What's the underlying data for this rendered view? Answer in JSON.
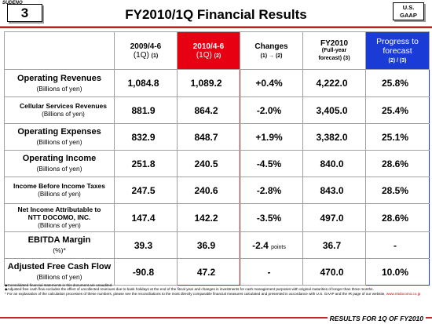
{
  "header": {
    "slide_no_label": "SUDENO",
    "slide_number": "3",
    "title": "FY2010/1Q Financial Results",
    "gaap_line1": "U.S.",
    "gaap_line2": "GAAP"
  },
  "columns": [
    {
      "main": "2009/4-6",
      "q": "(1Q)",
      "sub": "(1)"
    },
    {
      "main": "2010/4-6",
      "q": "(1Q)",
      "sub": "(2)"
    },
    {
      "main": "Changes",
      "q": "",
      "sub": "(1) → (2)"
    },
    {
      "main": "FY2010",
      "q": "(Full-year",
      "sub": "forecast) (3)"
    },
    {
      "main": "Progress to forecast",
      "q": "",
      "sub": "(2) / (3)"
    }
  ],
  "rows": [
    {
      "label": "Operating Revenues",
      "unit": "(Billions of yen)",
      "v1": "1,084.8",
      "v2": "1,089.2",
      "chg": "+0.4%",
      "chg_unit": "",
      "fc": "4,222.0",
      "prog": "25.8%"
    },
    {
      "label": "Cellular Services Revenues",
      "unit": "(Billions of yen)",
      "v1": "881.9",
      "v2": "864.2",
      "chg": "-2.0%",
      "chg_unit": "",
      "fc": "3,405.0",
      "prog": "25.4%"
    },
    {
      "label": "Operating Expenses",
      "unit": "(Billions of yen)",
      "v1": "832.9",
      "v2": "848.7",
      "chg": "+1.9%",
      "chg_unit": "",
      "fc": "3,382.0",
      "prog": "25.1%"
    },
    {
      "label": "Operating Income",
      "unit": "(Billions of yen)",
      "v1": "251.8",
      "v2": "240.5",
      "chg": "-4.5%",
      "chg_unit": "",
      "fc": "840.0",
      "prog": "28.6%"
    },
    {
      "label": "Income Before Income Taxes",
      "unit": "(Billions of yen)",
      "v1": "247.5",
      "v2": "240.6",
      "chg": "-2.8%",
      "chg_unit": "",
      "fc": "843.0",
      "prog": "28.5%"
    },
    {
      "label": "Net Income Attributable to NTT DOCOMO, INC.",
      "unit": "(Billions of yen)",
      "v1": "147.4",
      "v2": "142.2",
      "chg": "-3.5%",
      "chg_unit": "",
      "fc": "497.0",
      "prog": "28.6%"
    },
    {
      "label": "EBITDA Margin",
      "unit": "(%)*",
      "v1": "39.3",
      "v2": "36.9",
      "chg": "-2.4",
      "chg_unit": "points",
      "fc": "36.7",
      "prog": "-"
    },
    {
      "label": "Adjusted Free Cash Flow",
      "unit": "(Billions of yen)",
      "v1": "-90.8",
      "v2": "47.2",
      "chg": "-",
      "chg_unit": "",
      "fc": "470.0",
      "prog": "10.0%"
    }
  ],
  "footnotes": {
    "line1": "◆Consolidated financial statements in this document are unaudited.",
    "line2": "◆Adjusted free cash flow excludes the effect of uncollected revenues due to bank holidays at the end of the fiscal year and changes in investments for cash management purposes with original maturities of longer than three months.",
    "line3": "* For an explanation of the calculation processes of these numbers, please see the reconciliations to the most directly comparable financial measures calculated and presented in accordance with U.S. GAAP and the IR page of our website,",
    "link": "www.nttdocomo.co.jp"
  },
  "footer": {
    "text": "RESULTS FOR 1Q OF FY2010"
  }
}
